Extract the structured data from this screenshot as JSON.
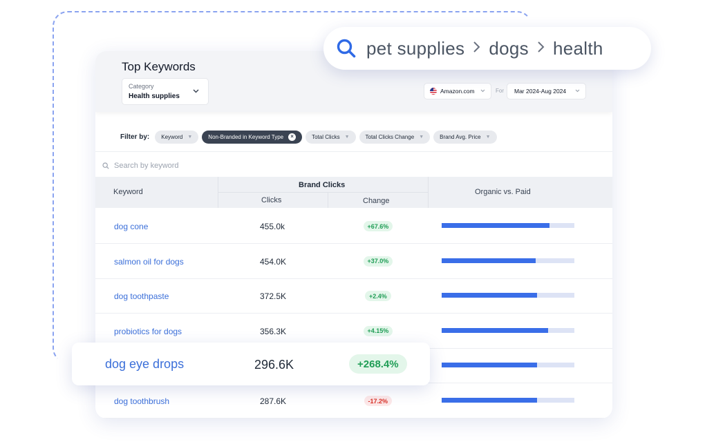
{
  "breadcrumb": {
    "segments": [
      "pet supplies",
      "dogs",
      "health"
    ],
    "separator": "›"
  },
  "panel": {
    "title": "Top Keywords",
    "category": {
      "label": "Category",
      "value": "Health supplies"
    },
    "marketplace": "Amazon.com",
    "for_label": "For",
    "date_range": "Mar 2024-Aug 2024"
  },
  "filters": {
    "label": "Filter by:",
    "chips": [
      {
        "label": "Keyword",
        "active": false
      },
      {
        "label": "Non-Branded in Keyword Type",
        "active": true
      },
      {
        "label": "Total Clicks",
        "active": false
      },
      {
        "label": "Total Clicks Change",
        "active": false
      },
      {
        "label": "Brand Avg. Price",
        "active": false
      }
    ]
  },
  "search": {
    "placeholder": "Search by keyword"
  },
  "table": {
    "headers": {
      "keyword": "Keyword",
      "group": "Brand Clicks",
      "clicks": "Clicks",
      "change": "Change",
      "organic": "Organic vs. Paid"
    },
    "rows": [
      {
        "keyword": "dog cone",
        "clicks": "455.0k",
        "change": "+67.6%",
        "trend": "positive",
        "organic_share": 0.81
      },
      {
        "keyword": "salmon oil for dogs",
        "clicks": "454.0K",
        "change": "+37.0%",
        "trend": "positive",
        "organic_share": 0.71
      },
      {
        "keyword": "dog toothpaste",
        "clicks": "372.5K",
        "change": "+2.4%",
        "trend": "positive",
        "organic_share": 0.72
      },
      {
        "keyword": "probiotics for dogs",
        "clicks": "356.3K",
        "change": "+4.15%",
        "trend": "positive",
        "organic_share": 0.8
      },
      {
        "keyword": "dog eye drops",
        "clicks": "296.6K",
        "change": "+268.4%",
        "trend": "positive",
        "organic_share": 0.72
      },
      {
        "keyword": "dog toothbrush",
        "clicks": "287.6K",
        "change": "-17.2%",
        "trend": "negative",
        "organic_share": 0.72
      }
    ]
  },
  "highlighted_row": {
    "keyword": "dog eye drops",
    "clicks": "296.6K",
    "change": "+268.4%"
  },
  "colors": {
    "accent": "#3a6ee8",
    "link": "#3b6fd9",
    "positive": "#1f9d55",
    "negative": "#d93025",
    "bar_track": "#dde3f5"
  }
}
